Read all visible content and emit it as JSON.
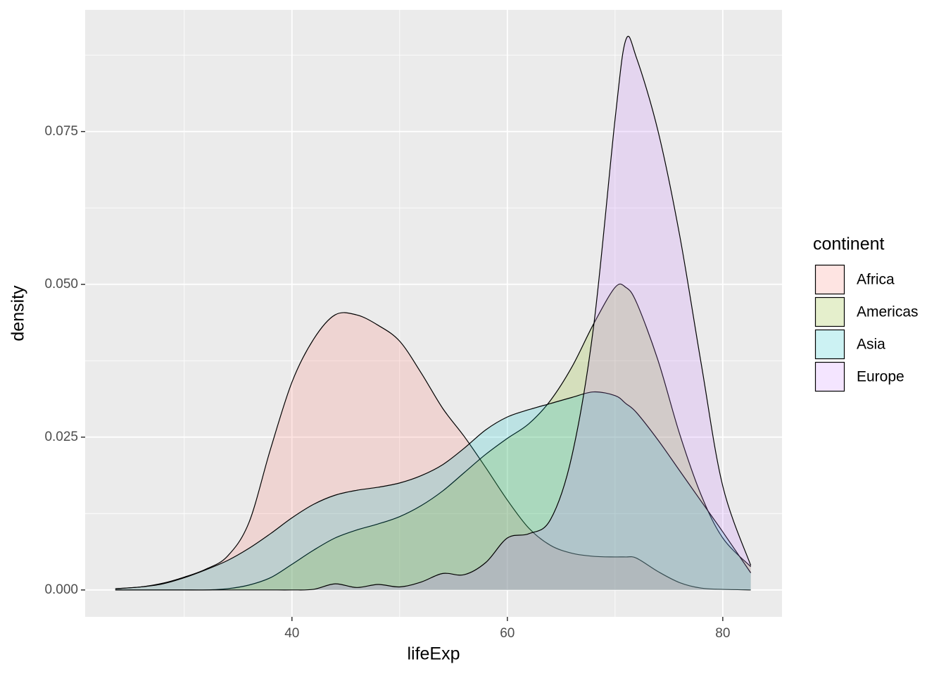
{
  "chart_data": {
    "type": "density",
    "x_label": "lifeExp",
    "y_label": "density",
    "legend_title": "continent",
    "x": [
      23.6,
      26,
      28,
      30,
      32,
      34,
      36,
      38,
      40,
      42,
      44,
      46,
      48,
      50,
      52,
      54,
      56,
      58,
      60,
      62,
      64,
      66,
      68,
      70,
      71,
      72,
      74,
      76,
      78,
      80,
      82.6
    ],
    "series": [
      {
        "name": "Africa",
        "color": "#F8766D",
        "values": [
          0.0002,
          0.0005,
          0.0011,
          0.0021,
          0.0034,
          0.0055,
          0.011,
          0.023,
          0.034,
          0.041,
          0.045,
          0.045,
          0.0433,
          0.0407,
          0.0355,
          0.0297,
          0.0251,
          0.02,
          0.0147,
          0.0101,
          0.0073,
          0.006,
          0.0055,
          0.0054,
          0.0054,
          0.0052,
          0.003,
          0.0012,
          0.0003,
          0.0001,
          0
        ]
      },
      {
        "name": "Americas",
        "color": "#7CAE00",
        "values": [
          0,
          0,
          0,
          0,
          0,
          0.0002,
          0.0008,
          0.002,
          0.0042,
          0.0065,
          0.0085,
          0.0098,
          0.0108,
          0.012,
          0.0138,
          0.0162,
          0.0192,
          0.0222,
          0.0248,
          0.0272,
          0.031,
          0.0365,
          0.0435,
          0.0495,
          0.0495,
          0.047,
          0.0375,
          0.0255,
          0.0155,
          0.0085,
          0.0038
        ]
      },
      {
        "name": "Asia",
        "color": "#00BFC4",
        "values": [
          0.0002,
          0.0005,
          0.001,
          0.002,
          0.0033,
          0.0048,
          0.0068,
          0.0092,
          0.0118,
          0.014,
          0.0155,
          0.0163,
          0.0168,
          0.0175,
          0.0187,
          0.0205,
          0.0232,
          0.0262,
          0.0283,
          0.0295,
          0.0305,
          0.0315,
          0.0324,
          0.0318,
          0.0305,
          0.029,
          0.0245,
          0.0195,
          0.0145,
          0.0095,
          0.0028
        ]
      },
      {
        "name": "Europe",
        "color": "#C77CFF",
        "values": [
          0,
          0,
          0,
          0,
          0,
          0,
          0,
          0,
          0,
          0.0001,
          0.001,
          0.0004,
          0.0009,
          0.0005,
          0.0013,
          0.0027,
          0.0025,
          0.0045,
          0.0085,
          0.0092,
          0.0115,
          0.022,
          0.043,
          0.077,
          0.09,
          0.087,
          0.075,
          0.058,
          0.037,
          0.017,
          0.004
        ]
      }
    ],
    "fill_opacity": 0.2,
    "xlim": [
      20.8,
      85.5
    ],
    "xticks": [
      40,
      60,
      80
    ],
    "xminor": [
      30,
      50,
      70
    ],
    "ylim": [
      -0.0044,
      0.0949
    ],
    "yticks": [
      {
        "value": 0,
        "label": "0.000"
      },
      {
        "value": 0.025,
        "label": "0.025"
      },
      {
        "value": 0.05,
        "label": "0.050"
      },
      {
        "value": 0.075,
        "label": "0.075"
      }
    ],
    "yminor": [
      0.0125,
      0.0375,
      0.0625,
      0.0875
    ],
    "grid": true,
    "legend": "right"
  }
}
